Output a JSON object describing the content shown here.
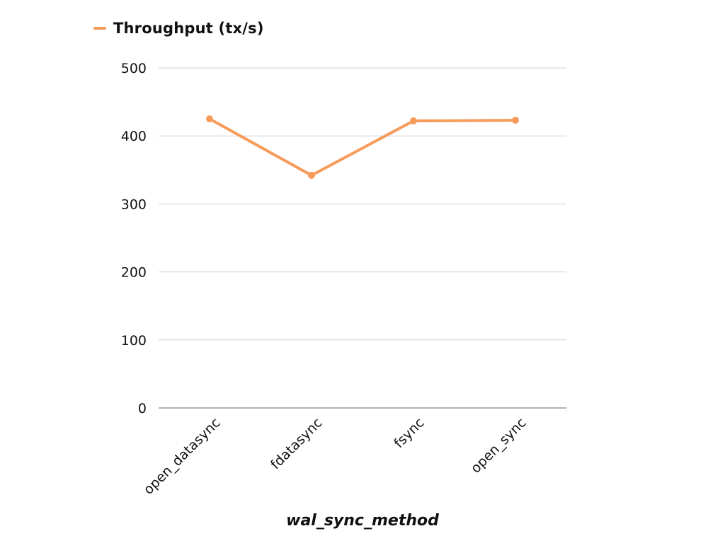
{
  "chart_data": {
    "type": "line",
    "categories": [
      "open_datasync",
      "fdatasync",
      "fsync",
      "open_sync"
    ],
    "series": [
      {
        "name": "Throughput (tx/s)",
        "values": [
          425,
          342,
          422,
          423
        ],
        "color": "#f79b5b"
      }
    ],
    "ylim": [
      0,
      500
    ],
    "yticks": [
      0,
      100,
      200,
      300,
      400,
      500
    ],
    "xlabel": "wal_sync_method",
    "ylabel": "",
    "grid": true,
    "legend_position": "top-left"
  }
}
